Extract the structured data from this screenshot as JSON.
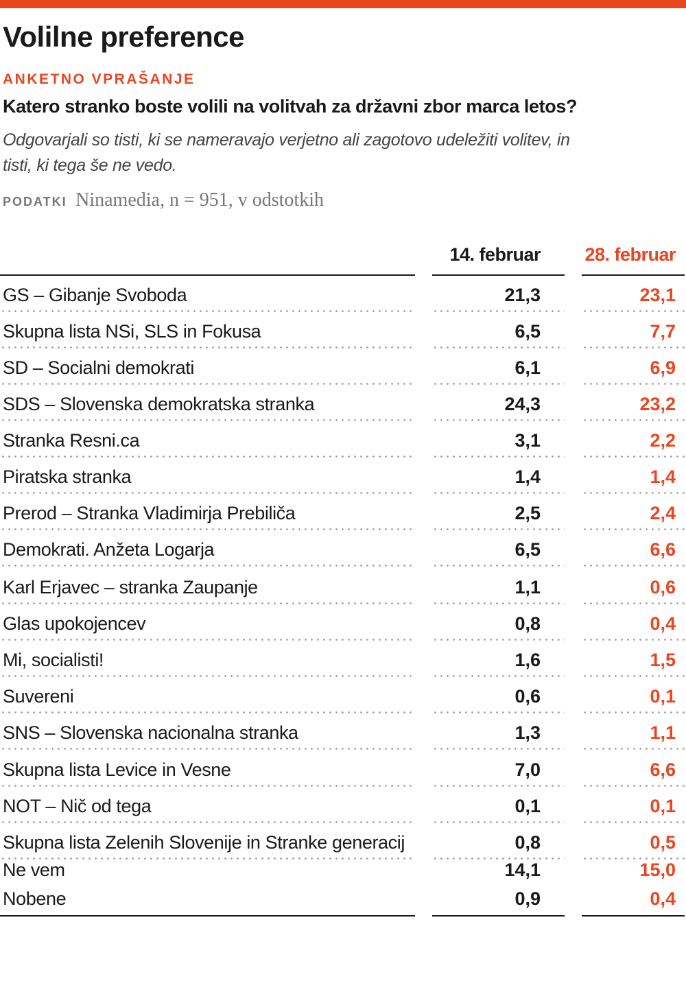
{
  "header": {
    "title": "Volilne preference",
    "kicker": "ANKETNO VPRAŠANJE",
    "question": "Katero stranko boste volili na volitvah za državni zbor marca letos?",
    "subtitle": "Odgovarjali so tisti, ki se nameravajo verjetno ali zagotovo udeležiti volitev, in tisti, ki tega še ne vedo.",
    "source_label": "PODATKI",
    "source_text": "Ninamedia, n = 951, v odstotkih"
  },
  "colors": {
    "accent": "#e94622",
    "text": "#1a1a1a",
    "muted": "#777777"
  },
  "chart_data": {
    "type": "table",
    "title": "Volilne preference",
    "columns": [
      "14. februar",
      "28. februar"
    ],
    "rows": [
      {
        "party": "GS – Gibanje Svoboda",
        "v1": "21,3",
        "v2": "23,1"
      },
      {
        "party": "Skupna lista NSi, SLS in Fokusa",
        "v1": "6,5",
        "v2": "7,7"
      },
      {
        "party": "SD – Socialni demokrati",
        "v1": "6,1",
        "v2": "6,9"
      },
      {
        "party": "SDS – Slovenska demokratska stranka",
        "v1": "24,3",
        "v2": "23,2"
      },
      {
        "party": "Stranka Resni.ca",
        "v1": "3,1",
        "v2": "2,2"
      },
      {
        "party": "Piratska stranka",
        "v1": "1,4",
        "v2": "1,4"
      },
      {
        "party": "Prerod – Stranka Vladimirja Prebiliča",
        "v1": "2,5",
        "v2": "2,4"
      },
      {
        "party": "Demokrati. Anžeta Logarja",
        "v1": "6,5",
        "v2": "6,6"
      },
      {
        "party": "Karl Erjavec – stranka Zaupanje",
        "v1": "1,1",
        "v2": "0,6"
      },
      {
        "party": "Glas upokojencev",
        "v1": "0,8",
        "v2": "0,4"
      },
      {
        "party": "Mi, socialisti!",
        "v1": "1,6",
        "v2": "1,5"
      },
      {
        "party": "Suvereni",
        "v1": "0,6",
        "v2": "0,1"
      },
      {
        "party": "SNS – Slovenska nacionalna stranka",
        "v1": "1,3",
        "v2": "1,1"
      },
      {
        "party": "Skupna lista Levice in Vesne",
        "v1": "7,0",
        "v2": "6,6"
      },
      {
        "party": "NOT – Nič od tega",
        "v1": "0,1",
        "v2": "0,1"
      },
      {
        "party": "Skupna lista Zelenih Slovenije in Stranke generacij",
        "v1": "0,8",
        "v2": "0,5"
      },
      {
        "party": "Ne vem",
        "v1": "14,1",
        "v2": "15,0"
      },
      {
        "party": "Nobene",
        "v1": "0,9",
        "v2": "0,4"
      }
    ]
  }
}
